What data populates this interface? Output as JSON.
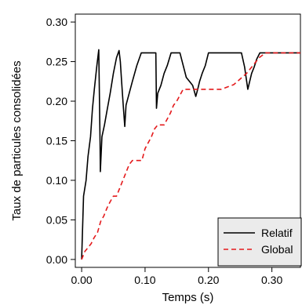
{
  "chart_data": {
    "type": "line",
    "title": "",
    "xlabel": "Temps (s)",
    "ylabel": "Taux de particules consolidées",
    "xlim": [
      -0.01,
      0.345
    ],
    "ylim": [
      -0.01,
      0.31
    ],
    "x_ticks": [
      0.0,
      0.1,
      0.2,
      0.3
    ],
    "x_tick_labels": [
      "0.00",
      "0.10",
      "0.20",
      "0.30"
    ],
    "y_ticks": [
      0.0,
      0.05,
      0.1,
      0.15,
      0.2,
      0.25,
      0.3
    ],
    "y_tick_labels": [
      "0.00",
      "0.05",
      "0.10",
      "0.15",
      "0.20",
      "0.25",
      "0.30"
    ],
    "grid": false,
    "legend_position": "bottom-right",
    "series": [
      {
        "name": "Relatif",
        "color": "#000000",
        "dash": "solid",
        "x": [
          0.0,
          0.003,
          0.007,
          0.01,
          0.014,
          0.017,
          0.02,
          0.024,
          0.027,
          0.029,
          0.0295,
          0.032,
          0.036,
          0.04,
          0.045,
          0.05,
          0.055,
          0.059,
          0.061,
          0.063,
          0.066,
          0.068,
          0.07,
          0.075,
          0.08,
          0.087,
          0.094,
          0.1,
          0.117,
          0.118,
          0.12,
          0.125,
          0.13,
          0.135,
          0.141,
          0.148,
          0.155,
          0.165,
          0.17,
          0.175,
          0.18,
          0.183,
          0.186,
          0.19,
          0.195,
          0.2,
          0.206,
          0.212,
          0.218,
          0.252,
          0.257,
          0.262,
          0.268,
          0.272,
          0.276,
          0.281,
          0.286,
          0.292,
          0.3,
          0.345
        ],
        "values": [
          0.0,
          0.08,
          0.1,
          0.13,
          0.155,
          0.19,
          0.215,
          0.245,
          0.265,
          0.15,
          0.111,
          0.155,
          0.17,
          0.188,
          0.21,
          0.235,
          0.255,
          0.264,
          0.25,
          0.225,
          0.19,
          0.168,
          0.195,
          0.21,
          0.225,
          0.245,
          0.261,
          0.261,
          0.261,
          0.191,
          0.21,
          0.22,
          0.235,
          0.245,
          0.261,
          0.261,
          0.261,
          0.23,
          0.225,
          0.22,
          0.206,
          0.215,
          0.225,
          0.235,
          0.245,
          0.261,
          0.261,
          0.261,
          0.261,
          0.261,
          0.243,
          0.215,
          0.235,
          0.243,
          0.253,
          0.261,
          0.261,
          0.261,
          0.261,
          0.261
        ]
      },
      {
        "name": "Global",
        "color": "#e41a1c",
        "dash": "dashed",
        "x": [
          0.0,
          0.005,
          0.01,
          0.015,
          0.02,
          0.025,
          0.03,
          0.035,
          0.04,
          0.045,
          0.05,
          0.055,
          0.06,
          0.065,
          0.07,
          0.075,
          0.08,
          0.09,
          0.095,
          0.1,
          0.11,
          0.115,
          0.12,
          0.125,
          0.13,
          0.14,
          0.145,
          0.15,
          0.16,
          0.17,
          0.175,
          0.18,
          0.19,
          0.2,
          0.21,
          0.22,
          0.23,
          0.24,
          0.25,
          0.26,
          0.27,
          0.28,
          0.29,
          0.3,
          0.31,
          0.345
        ],
        "values": [
          0.0,
          0.01,
          0.015,
          0.02,
          0.028,
          0.034,
          0.048,
          0.055,
          0.065,
          0.073,
          0.08,
          0.08,
          0.09,
          0.1,
          0.11,
          0.12,
          0.125,
          0.125,
          0.125,
          0.14,
          0.155,
          0.165,
          0.17,
          0.17,
          0.17,
          0.185,
          0.195,
          0.2,
          0.215,
          0.215,
          0.215,
          0.215,
          0.215,
          0.215,
          0.215,
          0.215,
          0.218,
          0.221,
          0.228,
          0.235,
          0.245,
          0.255,
          0.261,
          0.261,
          0.261,
          0.261
        ]
      }
    ]
  }
}
